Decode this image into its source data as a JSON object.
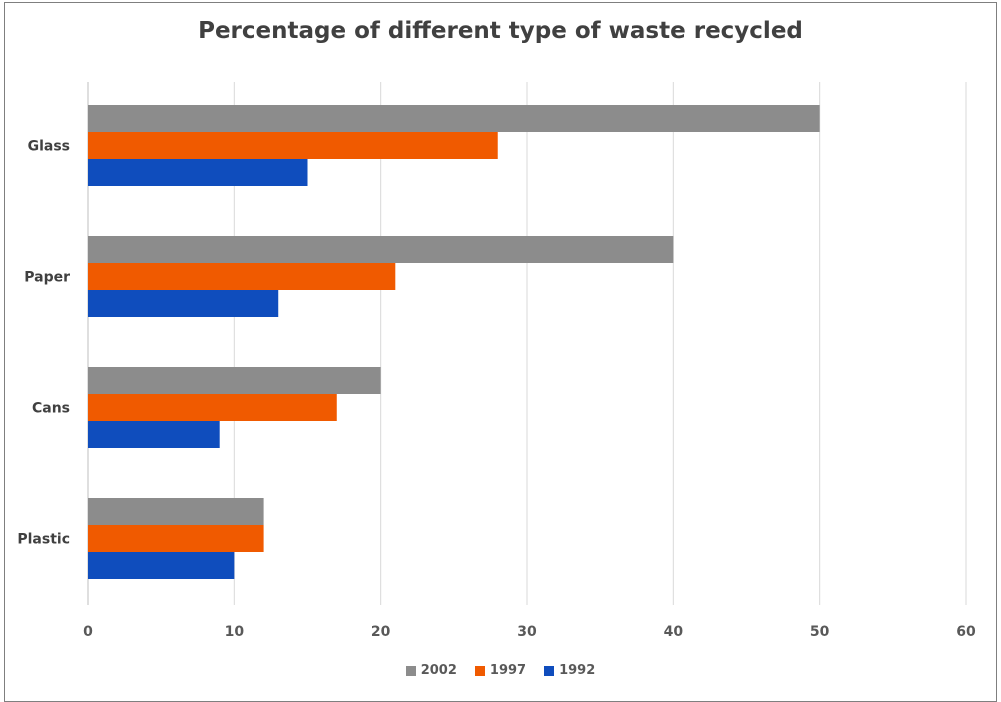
{
  "chart_data": {
    "type": "bar",
    "orientation": "horizontal",
    "title": "Percentage of different type of waste recycled",
    "categories": [
      "Glass",
      "Paper",
      "Cans",
      "Plastic"
    ],
    "series": [
      {
        "name": "2002",
        "color": "#8c8c8c",
        "values": [
          50,
          40,
          20,
          12
        ]
      },
      {
        "name": "1997",
        "color": "#f05a00",
        "values": [
          28,
          21,
          17,
          12
        ]
      },
      {
        "name": "1992",
        "color": "#0f4dbd",
        "values": [
          15,
          13,
          9,
          10
        ]
      }
    ],
    "xlim": [
      0,
      60
    ],
    "xticks": [
      "0",
      "10",
      "20",
      "30",
      "40",
      "50",
      "60"
    ],
    "grid": true,
    "legend_position": "bottom",
    "legend": [
      "2002",
      "1997",
      "1992"
    ]
  }
}
